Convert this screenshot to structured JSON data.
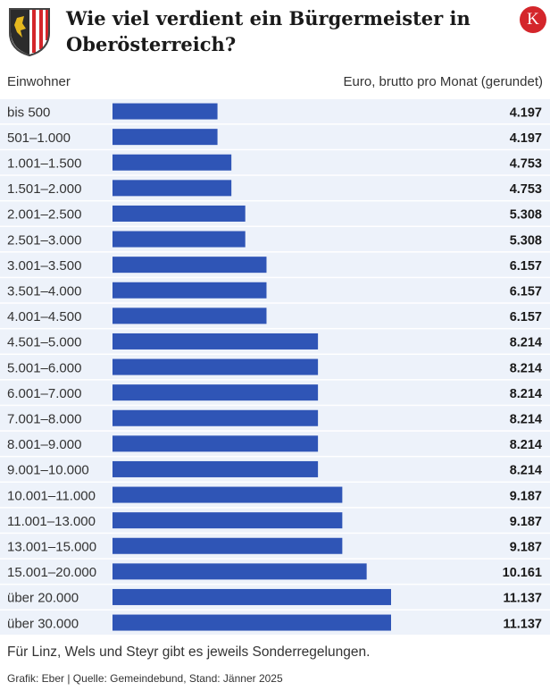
{
  "title": "Wie viel verdient ein Bürgermeister in Oberösterreich?",
  "logo_letter": "K",
  "colors": {
    "bar": "#2f55b6",
    "row_shade": "#edf2fa",
    "logo": "#d4262b"
  },
  "icons": {
    "crest": "oberoesterreich-coat-of-arms-icon",
    "logo": "kurier-k-logo-icon"
  },
  "chart_data": {
    "type": "bar",
    "orientation": "horizontal",
    "category_header": "Einwohner",
    "value_header": "Euro, brutto pro Monat (gerundet)",
    "categories": [
      "bis 500",
      "501–1.000",
      "1.001–1.500",
      "1.501–2.000",
      "2.001–2.500",
      "2.501–3.000",
      "3.001–3.500",
      "3.501–4.000",
      "4.001–4.500",
      "4.501–5.000",
      "5.001–6.000",
      "6.001–7.000",
      "7.001–8.000",
      "8.001–9.000",
      "9.001–10.000",
      "10.001–11.000",
      "11.001–13.000",
      "13.001–15.000",
      "15.001–20.000",
      "über 20.000",
      "über 30.000"
    ],
    "values": [
      4197,
      4197,
      4753,
      4753,
      5308,
      5308,
      6157,
      6157,
      6157,
      8214,
      8214,
      8214,
      8214,
      8214,
      8214,
      9187,
      9187,
      9187,
      10161,
      11137,
      11137
    ],
    "value_labels": [
      "4.197",
      "4.197",
      "4.753",
      "4.753",
      "5.308",
      "5.308",
      "6.157",
      "6.157",
      "6.157",
      "8.214",
      "8.214",
      "8.214",
      "8.214",
      "8.214",
      "8.214",
      "9.187",
      "9.187",
      "9.187",
      "10.161",
      "11.137",
      "11.137"
    ],
    "xlim": [
      0,
      11137
    ]
  },
  "note": "Für Linz, Wels und Steyr gibt es jeweils Sonderregelungen.",
  "source": "Grafik: Eber | Quelle: Gemeindebund, Stand: Jänner 2025"
}
